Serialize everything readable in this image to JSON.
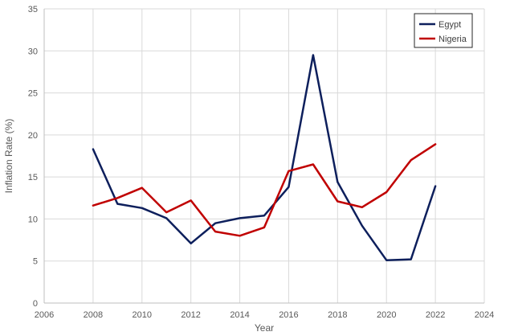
{
  "chart_data": {
    "type": "line",
    "title": "",
    "xlabel": "Year",
    "ylabel": "Inflation Rate (%)",
    "xlim": [
      2006,
      2024
    ],
    "ylim": [
      0,
      35
    ],
    "x_ticks": [
      "2006",
      "2008",
      "2010",
      "2012",
      "2014",
      "2016",
      "2018",
      "2020",
      "2022",
      "2024"
    ],
    "y_ticks": [
      "0",
      "5",
      "10",
      "15",
      "20",
      "25",
      "30",
      "35"
    ],
    "grid": "vertical and horizontal major gridlines",
    "legend": "top-right",
    "series": [
      {
        "name": "Egypt",
        "color": "#0d1f5c",
        "x": [
          2008,
          2009,
          2010,
          2011,
          2012,
          2013,
          2014,
          2015,
          2016,
          2017,
          2018,
          2019,
          2020,
          2021,
          2022
        ],
        "values": [
          18.3,
          11.8,
          11.3,
          10.1,
          7.1,
          9.5,
          10.1,
          10.4,
          13.8,
          29.5,
          14.4,
          9.2,
          5.1,
          5.2,
          13.9
        ]
      },
      {
        "name": "Nigeria",
        "color": "#c00000",
        "x": [
          2008,
          2009,
          2010,
          2011,
          2012,
          2013,
          2014,
          2015,
          2016,
          2017,
          2018,
          2019,
          2020,
          2021,
          2022
        ],
        "values": [
          11.6,
          12.5,
          13.7,
          10.8,
          12.2,
          8.5,
          8.0,
          9.0,
          15.7,
          16.5,
          12.1,
          11.4,
          13.2,
          17.0,
          18.9
        ]
      }
    ]
  }
}
